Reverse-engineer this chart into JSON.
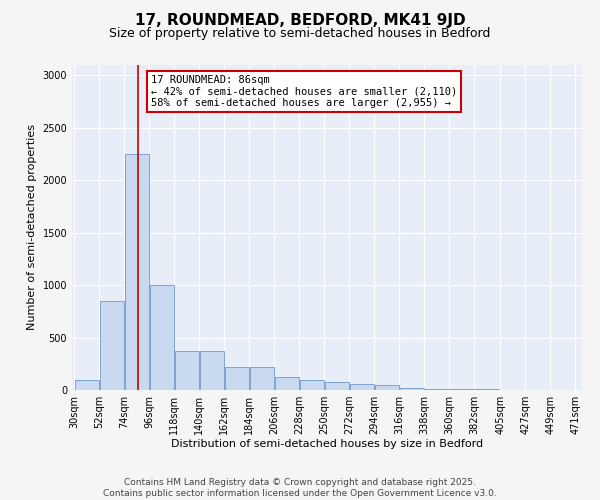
{
  "title": "17, ROUNDMEAD, BEDFORD, MK41 9JD",
  "subtitle": "Size of property relative to semi-detached houses in Bedford",
  "xlabel": "Distribution of semi-detached houses by size in Bedford",
  "ylabel": "Number of semi-detached properties",
  "footer_line1": "Contains HM Land Registry data © Crown copyright and database right 2025.",
  "footer_line2": "Contains public sector information licensed under the Open Government Licence v3.0.",
  "annotation_title": "17 ROUNDMEAD: 86sqm",
  "annotation_line1": "← 42% of semi-detached houses are smaller (2,110)",
  "annotation_line2": "58% of semi-detached houses are larger (2,955) →",
  "property_size": 86,
  "bar_left_edges": [
    30,
    52,
    74,
    96,
    118,
    140,
    162,
    184,
    206,
    228,
    250,
    272,
    294,
    316,
    338,
    360,
    382,
    405,
    427,
    449
  ],
  "bar_widths": [
    22,
    22,
    22,
    22,
    22,
    22,
    22,
    22,
    22,
    22,
    22,
    22,
    22,
    22,
    22,
    22,
    22,
    22,
    22,
    22
  ],
  "bar_heights": [
    100,
    850,
    2250,
    1000,
    375,
    375,
    220,
    220,
    120,
    100,
    75,
    60,
    50,
    20,
    10,
    5,
    5,
    3,
    2,
    1
  ],
  "bar_color": "#c9d9f0",
  "bar_edgecolor": "#7098c8",
  "vline_color": "#cc0000",
  "vline_x": 86,
  "annotation_box_color": "#cc0000",
  "fig_facecolor": "#f5f5f5",
  "axes_facecolor": "#e8eef8",
  "ylim": [
    0,
    3100
  ],
  "yticks": [
    0,
    500,
    1000,
    1500,
    2000,
    2500,
    3000
  ],
  "grid_color": "#ffffff",
  "title_fontsize": 11,
  "subtitle_fontsize": 9,
  "axis_label_fontsize": 8,
  "tick_label_fontsize": 7,
  "annotation_fontsize": 7.5,
  "footer_fontsize": 6.5
}
